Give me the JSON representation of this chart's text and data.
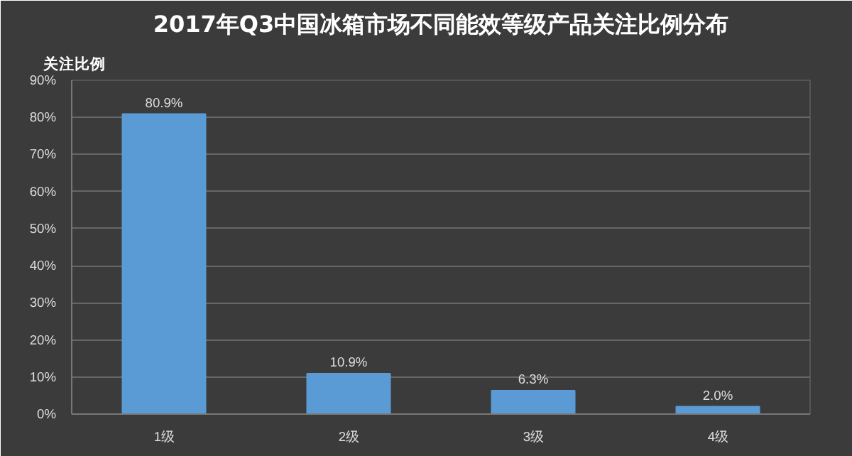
{
  "chart_data": {
    "type": "bar",
    "title": "2017年Q3中国冰箱市场不同能效等级产品关注比例分布",
    "ylabel": "关注比例",
    "categories": [
      "1级",
      "2级",
      "3级",
      "4级"
    ],
    "values": [
      80.9,
      10.9,
      6.3,
      2.0
    ],
    "value_labels": [
      "80.9%",
      "10.9%",
      "6.3%",
      "2.0%"
    ],
    "color": "#5b9bd5",
    "ylim": [
      0,
      90
    ],
    "yticks": [
      {
        "value": 0,
        "label": "0%"
      },
      {
        "value": 10,
        "label": "10%"
      },
      {
        "value": 20,
        "label": "20%"
      },
      {
        "value": 30,
        "label": "30%"
      },
      {
        "value": 40,
        "label": "40%"
      },
      {
        "value": 50,
        "label": "50%"
      },
      {
        "value": 60,
        "label": "60%"
      },
      {
        "value": 70,
        "label": "70%"
      },
      {
        "value": 80,
        "label": "80%"
      },
      {
        "value": 90,
        "label": "90%"
      }
    ],
    "grid": "y"
  }
}
